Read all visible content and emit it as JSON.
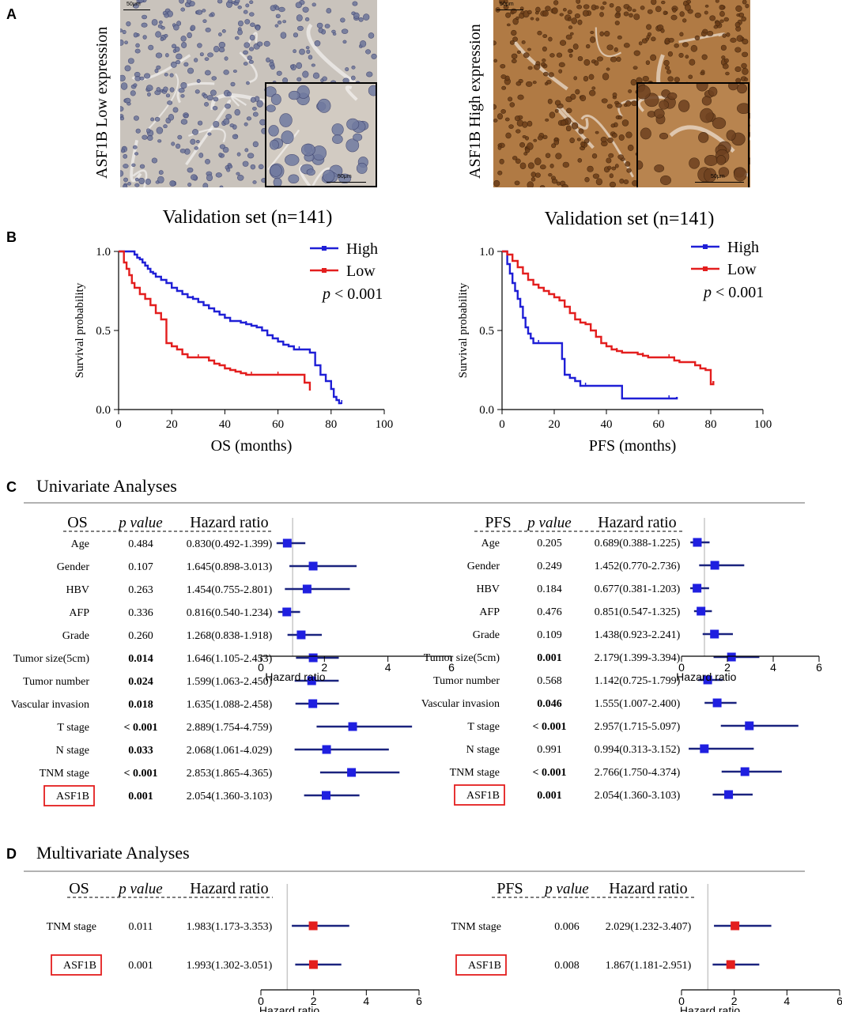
{
  "panels": {
    "a": "A",
    "b": "B",
    "c": "C",
    "d": "D"
  },
  "micrographs": {
    "low_label": "ASF1B Low expression",
    "high_label": "ASF1B High expression",
    "scale_text": "50μm",
    "low_color": "#c9c3bc",
    "high_color": "#b07a44"
  },
  "colors": {
    "high": "#1f1fd6",
    "low": "#e31e1e",
    "forest_line": "#1a237e",
    "forest_box_uni": "#1f1fe0",
    "forest_box_multi": "#e31e1e",
    "highlight": "#e31e1e",
    "rule": "#999999"
  },
  "chart_data": [
    {
      "type": "line",
      "title": "Validation set (n=141)",
      "xlabel": "OS (months)",
      "ylabel": "Survival probability",
      "xlim": [
        0,
        100
      ],
      "ylim": [
        0,
        1
      ],
      "xticks": [
        "0",
        "20",
        "40",
        "60",
        "80",
        "100"
      ],
      "yticks": [
        "0.0",
        "0.5",
        "1.0"
      ],
      "legend": [
        "High",
        "Low"
      ],
      "p_label": "p",
      "p_value": "< 0.001",
      "series": [
        {
          "name": "High",
          "x": [
            0,
            4,
            6,
            7,
            8,
            9,
            10,
            11,
            12,
            13,
            14,
            16,
            18,
            20,
            22,
            24,
            26,
            28,
            30,
            32,
            34,
            36,
            38,
            40,
            42,
            44,
            46,
            48,
            50,
            52,
            54,
            56,
            58,
            60,
            62,
            64,
            66,
            68,
            70,
            72,
            74,
            76,
            78,
            80,
            81,
            82,
            83,
            84
          ],
          "y": [
            1.0,
            1.0,
            0.98,
            0.96,
            0.95,
            0.93,
            0.91,
            0.89,
            0.87,
            0.86,
            0.84,
            0.82,
            0.8,
            0.77,
            0.75,
            0.73,
            0.71,
            0.7,
            0.68,
            0.66,
            0.64,
            0.62,
            0.6,
            0.58,
            0.56,
            0.56,
            0.55,
            0.54,
            0.53,
            0.52,
            0.5,
            0.47,
            0.45,
            0.43,
            0.41,
            0.4,
            0.38,
            0.38,
            0.38,
            0.36,
            0.28,
            0.22,
            0.18,
            0.13,
            0.08,
            0.06,
            0.04,
            0.04
          ]
        },
        {
          "name": "Low",
          "x": [
            0,
            2,
            3,
            4,
            5,
            6,
            8,
            10,
            12,
            14,
            16,
            18,
            20,
            22,
            24,
            26,
            28,
            30,
            32,
            34,
            36,
            38,
            40,
            42,
            44,
            46,
            48,
            50,
            52,
            54,
            56,
            58,
            60,
            62,
            64,
            66,
            68,
            70,
            72
          ],
          "y": [
            1.0,
            0.93,
            0.89,
            0.85,
            0.8,
            0.77,
            0.73,
            0.7,
            0.66,
            0.61,
            0.57,
            0.42,
            0.4,
            0.38,
            0.35,
            0.33,
            0.33,
            0.33,
            0.33,
            0.31,
            0.29,
            0.28,
            0.26,
            0.25,
            0.24,
            0.23,
            0.22,
            0.22,
            0.22,
            0.22,
            0.22,
            0.22,
            0.22,
            0.22,
            0.22,
            0.22,
            0.22,
            0.17,
            0.12
          ]
        }
      ]
    },
    {
      "type": "line",
      "title": "Validation set (n=141)",
      "xlabel": "PFS (months)",
      "ylabel": "Survival probability",
      "xlim": [
        0,
        100
      ],
      "ylim": [
        0,
        1
      ],
      "xticks": [
        "0",
        "20",
        "40",
        "60",
        "80",
        "100"
      ],
      "yticks": [
        "0.0",
        "0.5",
        "1.0"
      ],
      "legend": [
        "High",
        "Low"
      ],
      "p_label": "p",
      "p_value": "< 0.001",
      "series": [
        {
          "name": "High",
          "x": [
            0,
            2,
            3,
            4,
            5,
            6,
            7,
            8,
            9,
            10,
            11,
            12,
            14,
            16,
            18,
            20,
            22,
            23,
            24,
            26,
            28,
            30,
            32,
            34,
            36,
            40,
            44,
            46,
            48,
            52,
            56,
            60,
            64,
            67
          ],
          "y": [
            1.0,
            0.92,
            0.86,
            0.8,
            0.75,
            0.7,
            0.65,
            0.58,
            0.52,
            0.48,
            0.45,
            0.42,
            0.42,
            0.42,
            0.42,
            0.42,
            0.42,
            0.32,
            0.22,
            0.2,
            0.18,
            0.15,
            0.15,
            0.15,
            0.15,
            0.15,
            0.15,
            0.07,
            0.07,
            0.07,
            0.07,
            0.07,
            0.07,
            0.08
          ]
        },
        {
          "name": "Low",
          "x": [
            0,
            2,
            4,
            6,
            8,
            10,
            12,
            14,
            16,
            18,
            20,
            22,
            24,
            26,
            28,
            30,
            32,
            34,
            36,
            38,
            40,
            42,
            44,
            46,
            48,
            50,
            52,
            54,
            56,
            58,
            60,
            62,
            64,
            66,
            68,
            70,
            72,
            74,
            76,
            78,
            80,
            81
          ],
          "y": [
            1.0,
            0.98,
            0.94,
            0.9,
            0.86,
            0.82,
            0.79,
            0.77,
            0.75,
            0.73,
            0.71,
            0.69,
            0.65,
            0.61,
            0.57,
            0.55,
            0.54,
            0.5,
            0.46,
            0.42,
            0.4,
            0.38,
            0.37,
            0.36,
            0.36,
            0.36,
            0.35,
            0.34,
            0.33,
            0.33,
            0.33,
            0.33,
            0.33,
            0.31,
            0.3,
            0.3,
            0.3,
            0.28,
            0.26,
            0.25,
            0.16,
            0.18
          ]
        }
      ]
    },
    {
      "type": "forest",
      "title": "Univariate Analyses",
      "group": "OS",
      "columns": {
        "p": "p value",
        "hr": "Hazard ratio"
      },
      "xlabel": "Hazard ratio",
      "xlim": [
        0,
        6
      ],
      "xticks": [
        "0",
        "2",
        "4",
        "6"
      ],
      "reference": 1,
      "rows": [
        {
          "label": "Age",
          "p": "0.484",
          "bold": false,
          "hr_text": "0.830(0.492-1.399)",
          "hr": 0.83,
          "lo": 0.492,
          "hi": 1.399
        },
        {
          "label": "Gender",
          "p": "0.107",
          "bold": false,
          "hr_text": "1.645(0.898-3.013)",
          "hr": 1.645,
          "lo": 0.898,
          "hi": 3.013
        },
        {
          "label": "HBV",
          "p": "0.263",
          "bold": false,
          "hr_text": "1.454(0.755-2.801)",
          "hr": 1.454,
          "lo": 0.755,
          "hi": 2.801
        },
        {
          "label": "AFP",
          "p": "0.336",
          "bold": false,
          "hr_text": "0.816(0.540-1.234)",
          "hr": 0.816,
          "lo": 0.54,
          "hi": 1.234
        },
        {
          "label": "Grade",
          "p": "0.260",
          "bold": false,
          "hr_text": "1.268(0.838-1.918)",
          "hr": 1.268,
          "lo": 0.838,
          "hi": 1.918
        },
        {
          "label": "Tumor size(5cm)",
          "p": "0.014",
          "bold": true,
          "hr_text": "1.646(1.105-2.453)",
          "hr": 1.646,
          "lo": 1.105,
          "hi": 2.453
        },
        {
          "label": "Tumor number",
          "p": "0.024",
          "bold": true,
          "hr_text": "1.599(1.063-2.450)",
          "hr": 1.599,
          "lo": 1.063,
          "hi": 2.45
        },
        {
          "label": "Vascular invasion",
          "p": "0.018",
          "bold": true,
          "hr_text": "1.635(1.088-2.458)",
          "hr": 1.635,
          "lo": 1.088,
          "hi": 2.458
        },
        {
          "label": "T stage",
          "p": "< 0.001",
          "bold": true,
          "hr_text": "2.889(1.754-4.759)",
          "hr": 2.889,
          "lo": 1.754,
          "hi": 4.759
        },
        {
          "label": "N stage",
          "p": "0.033",
          "bold": true,
          "hr_text": "2.068(1.061-4.029)",
          "hr": 2.068,
          "lo": 1.061,
          "hi": 4.029
        },
        {
          "label": "TNM stage",
          "p": "< 0.001",
          "bold": true,
          "hr_text": "2.853(1.865-4.365)",
          "hr": 2.853,
          "lo": 1.865,
          "hi": 4.365
        },
        {
          "label": "ASF1B",
          "p": "0.001",
          "bold": true,
          "hr_text": "2.054(1.360-3.103)",
          "hr": 2.054,
          "lo": 1.36,
          "hi": 3.103,
          "boxed": true
        }
      ]
    },
    {
      "type": "forest",
      "title": "Univariate Analyses",
      "group": "PFS",
      "columns": {
        "p": "p value",
        "hr": "Hazard ratio"
      },
      "xlabel": "Hazard ratio",
      "xlim": [
        0,
        6
      ],
      "xticks": [
        "0",
        "2",
        "4",
        "6"
      ],
      "reference": 1,
      "rows": [
        {
          "label": "Age",
          "p": "0.205",
          "bold": false,
          "hr_text": "0.689(0.388-1.225)",
          "hr": 0.689,
          "lo": 0.388,
          "hi": 1.225
        },
        {
          "label": "Gender",
          "p": "0.249",
          "bold": false,
          "hr_text": "1.452(0.770-2.736)",
          "hr": 1.452,
          "lo": 0.77,
          "hi": 2.736
        },
        {
          "label": "HBV",
          "p": "0.184",
          "bold": false,
          "hr_text": "0.677(0.381-1.203)",
          "hr": 0.677,
          "lo": 0.381,
          "hi": 1.203
        },
        {
          "label": "AFP",
          "p": "0.476",
          "bold": false,
          "hr_text": "0.851(0.547-1.325)",
          "hr": 0.851,
          "lo": 0.547,
          "hi": 1.325
        },
        {
          "label": "Grade",
          "p": "0.109",
          "bold": false,
          "hr_text": "1.438(0.923-2.241)",
          "hr": 1.438,
          "lo": 0.923,
          "hi": 2.241
        },
        {
          "label": "Tumor size(5cm)",
          "p": "0.001",
          "bold": true,
          "hr_text": "2.179(1.399-3.394)",
          "hr": 2.179,
          "lo": 1.399,
          "hi": 3.394
        },
        {
          "label": "Tumor number",
          "p": "0.568",
          "bold": false,
          "hr_text": "1.142(0.725-1.799)",
          "hr": 1.142,
          "lo": 0.725,
          "hi": 1.799
        },
        {
          "label": "Vascular invasion",
          "p": "0.046",
          "bold": true,
          "hr_text": "1.555(1.007-2.400)",
          "hr": 1.555,
          "lo": 1.007,
          "hi": 2.4
        },
        {
          "label": "T stage",
          "p": "< 0.001",
          "bold": true,
          "hr_text": "2.957(1.715-5.097)",
          "hr": 2.957,
          "lo": 1.715,
          "hi": 5.097
        },
        {
          "label": "N stage",
          "p": "0.991",
          "bold": false,
          "hr_text": "0.994(0.313-3.152)",
          "hr": 0.994,
          "lo": 0.313,
          "hi": 3.152
        },
        {
          "label": "TNM stage",
          "p": "< 0.001",
          "bold": true,
          "hr_text": "2.766(1.750-4.374)",
          "hr": 2.766,
          "lo": 1.75,
          "hi": 4.374
        },
        {
          "label": "ASF1B",
          "p": "0.001",
          "bold": true,
          "hr_text": "2.054(1.360-3.103)",
          "hr": 2.054,
          "lo": 1.36,
          "hi": 3.103,
          "boxed": true
        }
      ]
    },
    {
      "type": "forest",
      "title": "Multivariate Analyses",
      "group": "OS",
      "columns": {
        "p": "p value",
        "hr": "Hazard ratio"
      },
      "xlabel": "Hazard ratio",
      "xlim": [
        0,
        6
      ],
      "xticks": [
        "0",
        "2",
        "4",
        "6"
      ],
      "reference": 1,
      "rows": [
        {
          "label": "TNM stage",
          "p": "0.011",
          "bold": false,
          "hr_text": "1.983(1.173-3.353)",
          "hr": 1.983,
          "lo": 1.173,
          "hi": 3.353
        },
        {
          "label": "ASF1B",
          "p": "0.001",
          "bold": false,
          "hr_text": "1.993(1.302-3.051)",
          "hr": 1.993,
          "lo": 1.302,
          "hi": 3.051,
          "boxed": true
        }
      ]
    },
    {
      "type": "forest",
      "title": "Multivariate Analyses",
      "group": "PFS",
      "columns": {
        "p": "p value",
        "hr": "Hazard ratio"
      },
      "xlabel": "Hazard ratio",
      "xlim": [
        0,
        6
      ],
      "xticks": [
        "0",
        "2",
        "4",
        "6"
      ],
      "reference": 1,
      "rows": [
        {
          "label": "TNM stage",
          "p": "0.006",
          "bold": false,
          "hr_text": "2.029(1.232-3.407)",
          "hr": 2.029,
          "lo": 1.232,
          "hi": 3.407
        },
        {
          "label": "ASF1B",
          "p": "0.008",
          "bold": false,
          "hr_text": "1.867(1.181-2.951)",
          "hr": 1.867,
          "lo": 1.181,
          "hi": 2.951,
          "boxed": true
        }
      ]
    }
  ]
}
